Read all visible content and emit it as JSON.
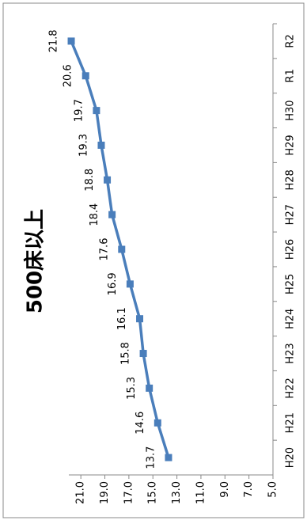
{
  "chart_data": {
    "type": "line",
    "title": "500床以上",
    "categories": [
      "H20",
      "H21",
      "H22",
      "H23",
      "H24",
      "H25",
      "H26",
      "H27",
      "H28",
      "H29",
      "H30",
      "R1",
      "R2"
    ],
    "values": [
      13.7,
      14.6,
      15.3,
      15.8,
      16.1,
      16.9,
      17.6,
      18.4,
      18.8,
      19.3,
      19.7,
      20.6,
      21.8
    ],
    "color": "#4a7ebb",
    "ylim": [
      5,
      22
    ],
    "yticks": [
      {
        "value": 5,
        "label": "5.0"
      },
      {
        "value": 7,
        "label": "7.0"
      },
      {
        "value": 9,
        "label": "9.0"
      },
      {
        "value": 11,
        "label": "11.0"
      },
      {
        "value": 13,
        "label": "13.0"
      },
      {
        "value": 15,
        "label": "15.0"
      },
      {
        "value": 17,
        "label": "17.0"
      },
      {
        "value": 19,
        "label": "19.0"
      },
      {
        "value": 21,
        "label": "21.0"
      }
    ],
    "grid": false
  }
}
